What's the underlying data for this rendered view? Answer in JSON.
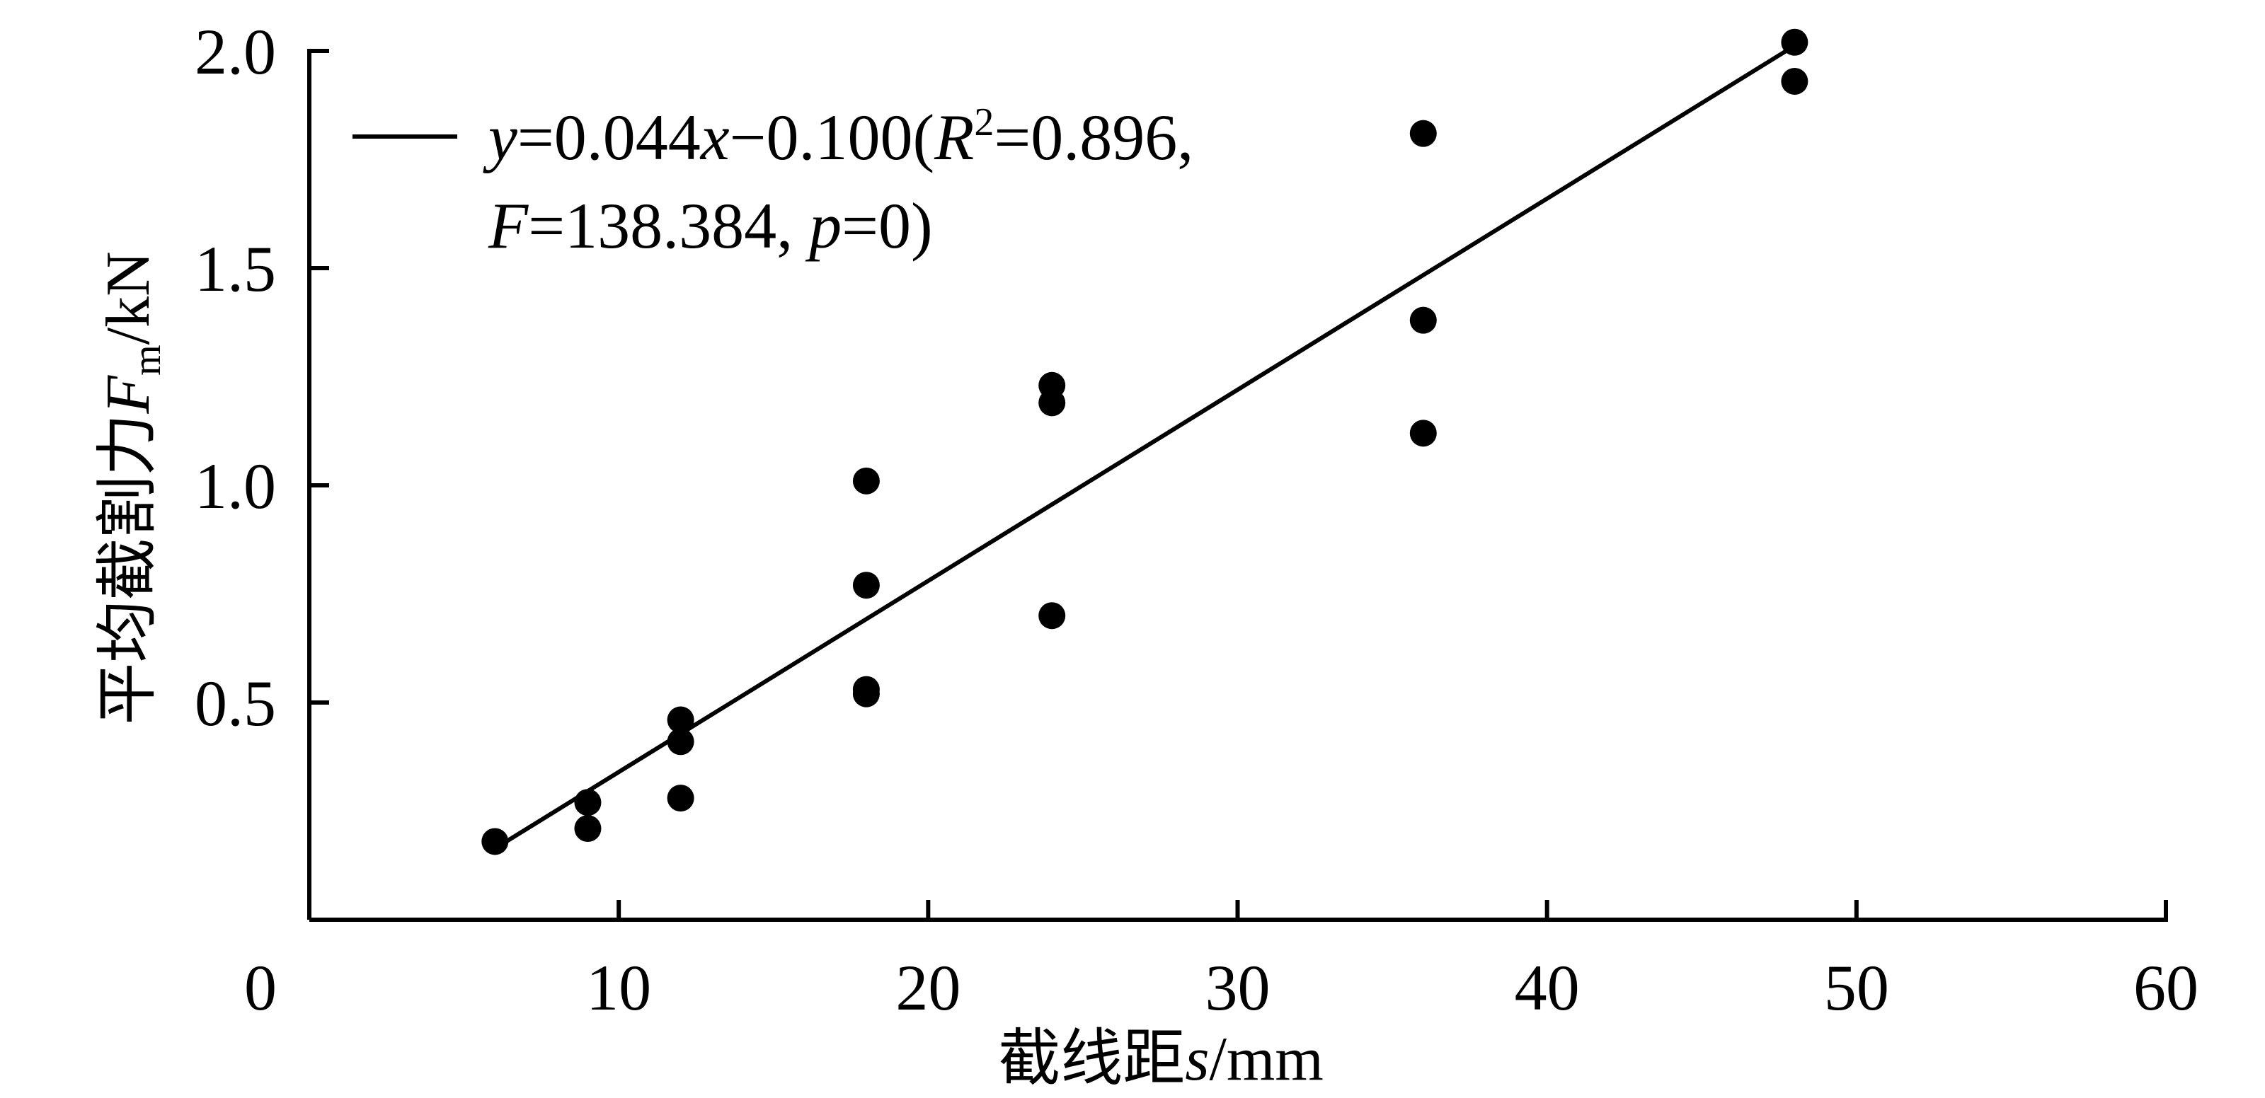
{
  "chart_data": {
    "type": "scatter",
    "title": "",
    "xlabel": {
      "prefix": "截线距",
      "var": "s",
      "unit": "/mm"
    },
    "ylabel": {
      "prefix": "平均截割力",
      "var": "F",
      "sub": "m",
      "unit": "/kN"
    },
    "xlim": [
      0,
      60
    ],
    "ylim": [
      0,
      2.0
    ],
    "x_ticks": [
      "0",
      "10",
      "20",
      "30",
      "40",
      "50",
      "60"
    ],
    "y_ticks": [
      "0.5",
      "1.0",
      "1.5",
      "2.0"
    ],
    "grid": false,
    "legend_position": "top-left",
    "series": [
      {
        "points": [
          {
            "x": 6,
            "y": 0.18
          },
          {
            "x": 9,
            "y": 0.27
          },
          {
            "x": 9,
            "y": 0.21
          },
          {
            "x": 12,
            "y": 0.46
          },
          {
            "x": 12,
            "y": 0.41
          },
          {
            "x": 12,
            "y": 0.28
          },
          {
            "x": 18,
            "y": 1.01
          },
          {
            "x": 18,
            "y": 0.77
          },
          {
            "x": 18,
            "y": 0.53
          },
          {
            "x": 18,
            "y": 0.52
          },
          {
            "x": 24,
            "y": 1.23
          },
          {
            "x": 24,
            "y": 1.19
          },
          {
            "x": 24,
            "y": 0.7
          },
          {
            "x": 36,
            "y": 1.81
          },
          {
            "x": 36,
            "y": 1.38
          },
          {
            "x": 36,
            "y": 1.12
          },
          {
            "x": 48,
            "y": 2.02
          },
          {
            "x": 48,
            "y": 1.93
          }
        ]
      }
    ],
    "fit_line": {
      "slope": 0.044,
      "intercept": -0.1,
      "x_range": [
        6,
        48
      ],
      "legend_line1": [
        "y",
        "=0.044",
        "x",
        "−0.100(",
        "R",
        "2",
        "=0.896,"
      ],
      "legend_line2": [
        "F",
        "=138.384, ",
        "p",
        "=0)"
      ]
    }
  }
}
